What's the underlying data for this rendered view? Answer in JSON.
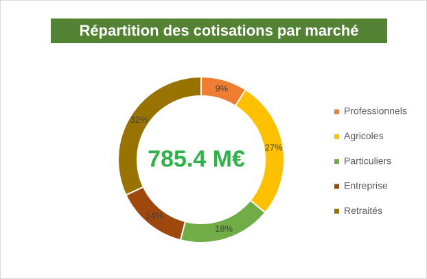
{
  "chart_data": {
    "type": "donut",
    "title": "Répartition des cotisations par marché",
    "center_label": "785.4 M€",
    "categories": [
      "Professionnels",
      "Agricoles",
      "Particuliers",
      "Entreprise",
      "Retraités"
    ],
    "values": [
      9,
      27,
      18,
      14,
      32
    ],
    "value_labels": [
      "9%",
      "27%",
      "18%",
      "14%",
      "32%"
    ],
    "colors": [
      "#ed7d31",
      "#ffc000",
      "#70ad47",
      "#9e480e",
      "#997300"
    ],
    "legend": "right"
  }
}
